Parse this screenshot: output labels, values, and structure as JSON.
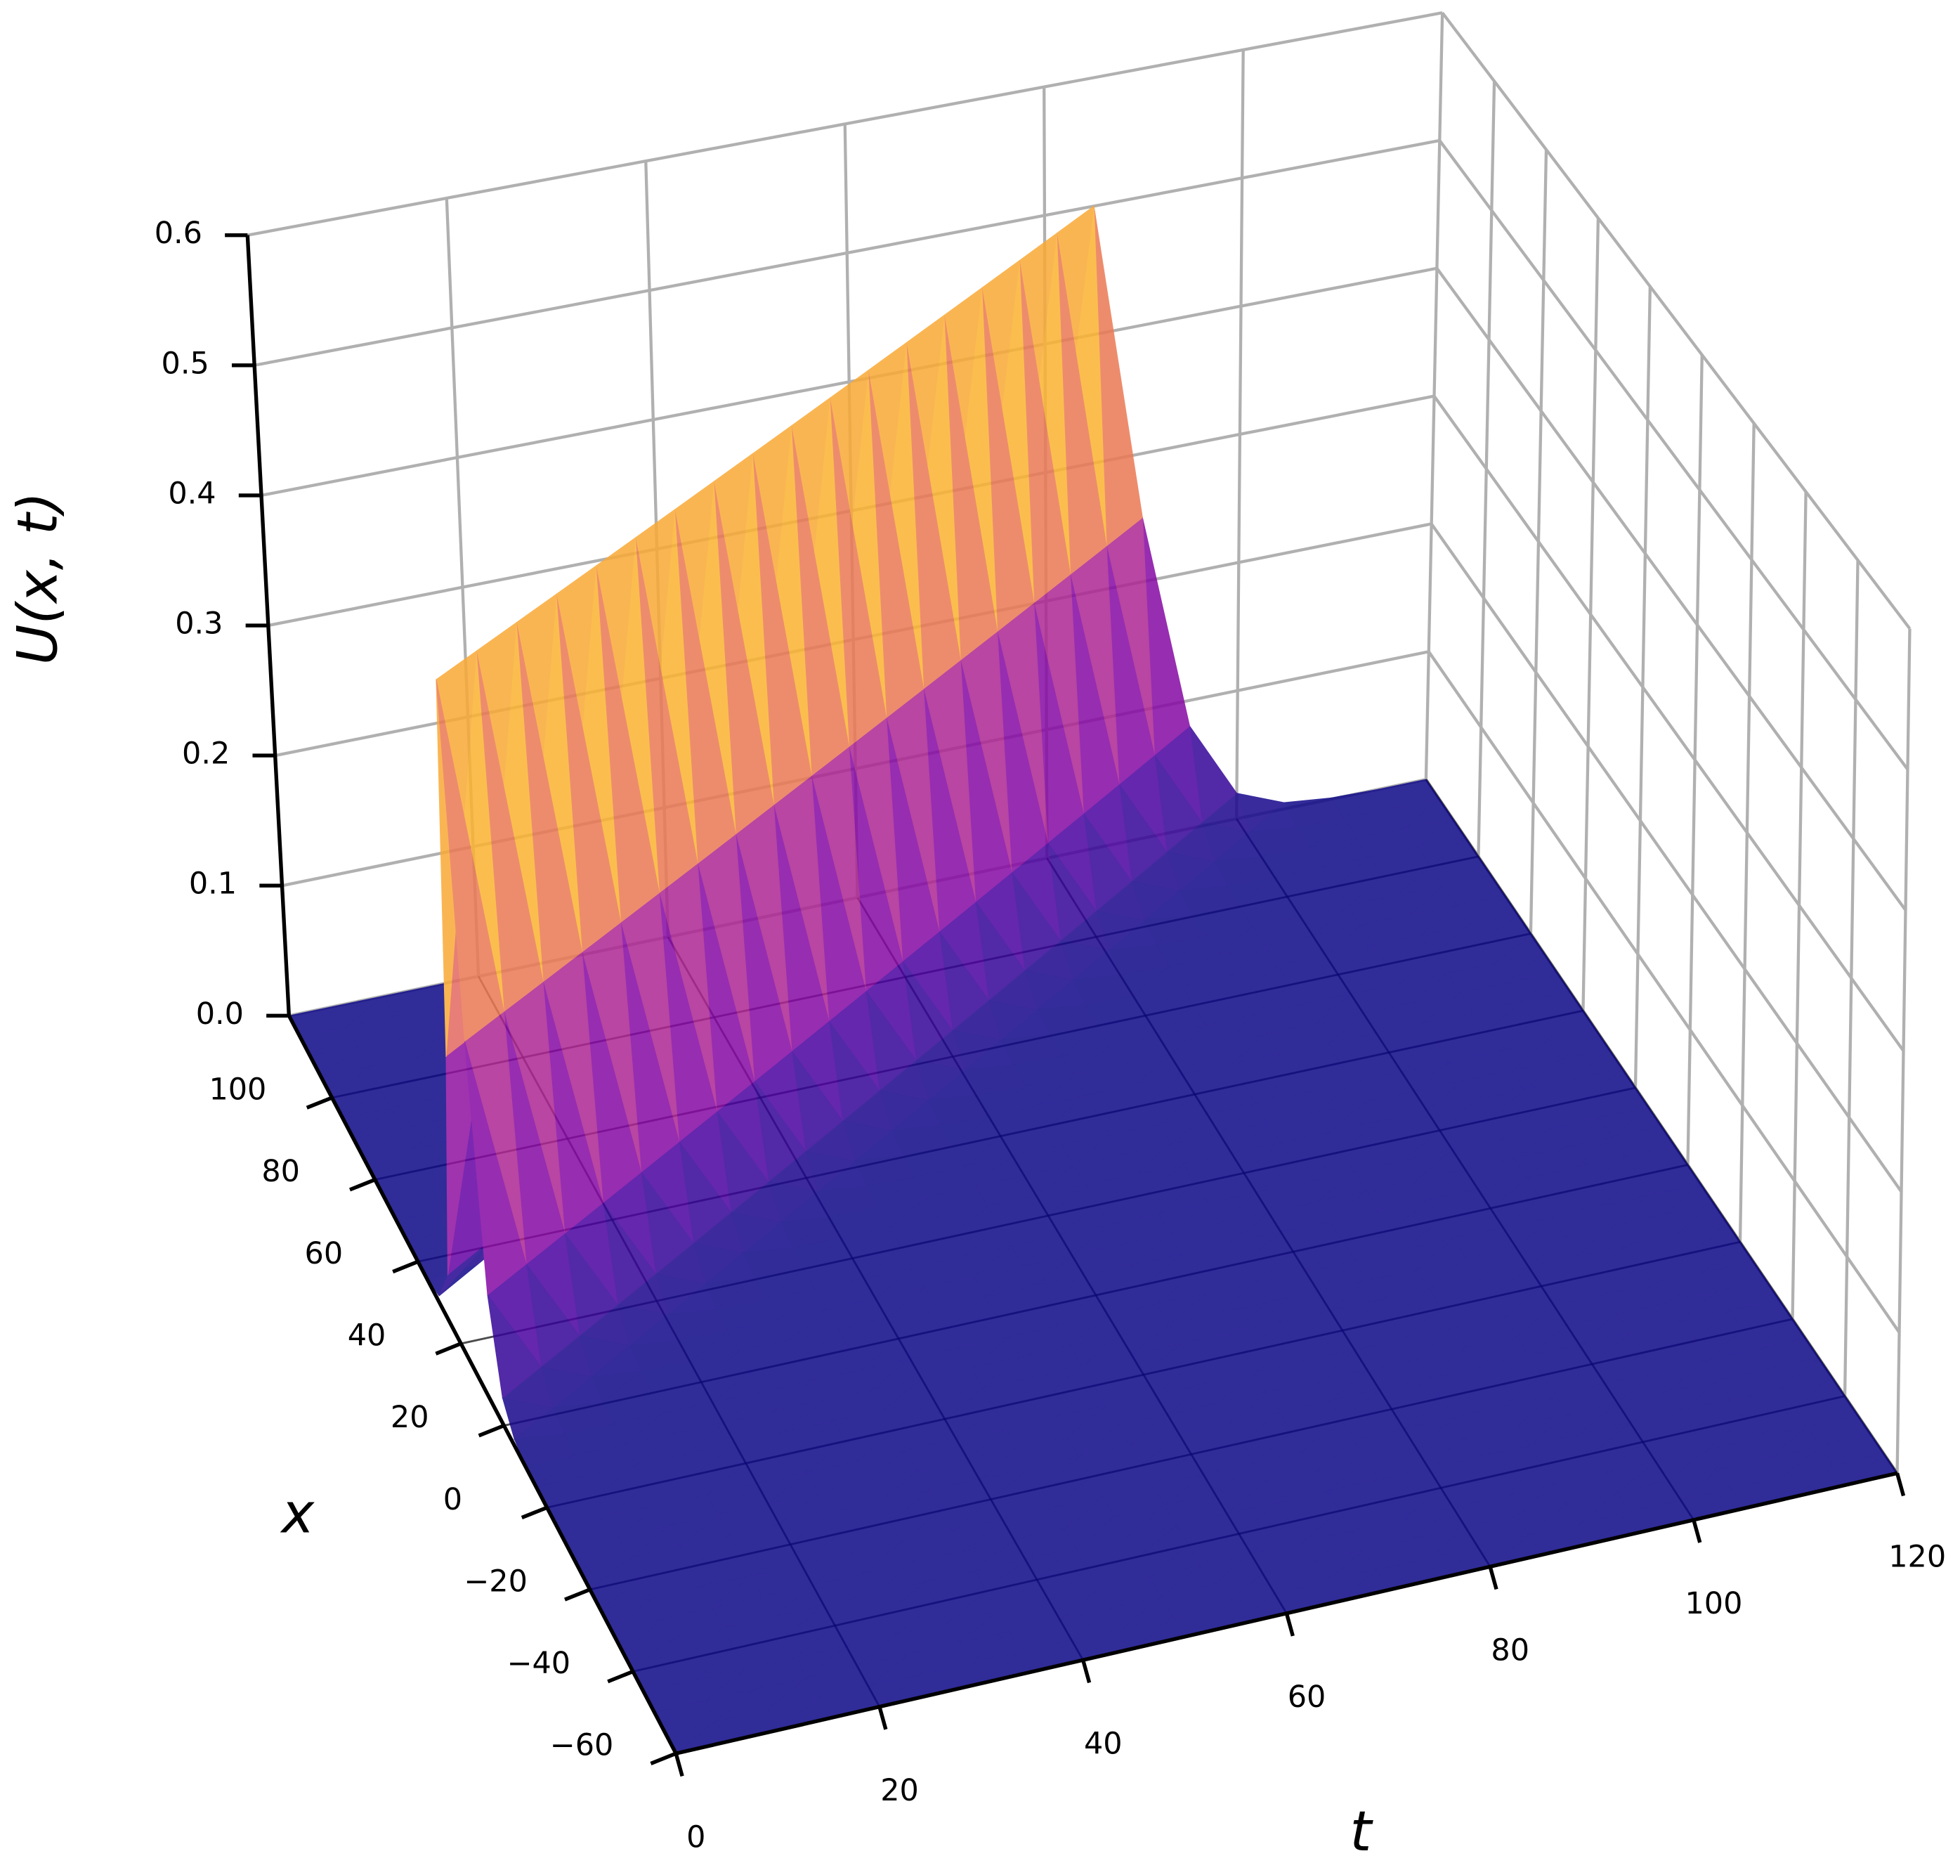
{
  "chart_data": {
    "type": "surface",
    "colormap": "plasma",
    "x_label": "x",
    "t_label": "t",
    "z_label": "U(x, t)",
    "grid": true,
    "xlim": [
      -60,
      120
    ],
    "tlim": [
      0,
      120
    ],
    "zlim": [
      0,
      0.6
    ],
    "xticks": [
      {
        "value": -60,
        "label": "−60"
      },
      {
        "value": -40,
        "label": "−40"
      },
      {
        "value": -20,
        "label": "−20"
      },
      0,
      20,
      40,
      60,
      80,
      100
    ],
    "tticks": [
      0,
      20,
      40,
      60,
      80,
      100,
      120
    ],
    "zticks": [
      {
        "value": 0,
        "label": "0.0"
      },
      0.1,
      0.2,
      0.3,
      0.4,
      0.5,
      0.6
    ],
    "t": [
      0,
      5,
      10,
      15,
      20,
      25,
      30,
      35,
      40,
      45,
      50,
      55,
      60,
      65,
      70,
      75,
      80,
      85,
      90,
      95,
      100,
      105,
      110,
      115,
      120
    ],
    "x": [
      -60,
      -55,
      -50,
      -45,
      -40,
      -35,
      -30,
      -25,
      -20,
      -15,
      -10,
      -5,
      0,
      5,
      10,
      15,
      20,
      25,
      30,
      35,
      40,
      45,
      50,
      55,
      60,
      65,
      70,
      75,
      80,
      85,
      90,
      95,
      100,
      105,
      110,
      115,
      120
    ],
    "z": [
      [
        0,
        0,
        0,
        0,
        0,
        0,
        0,
        0,
        0,
        0,
        0,
        0,
        0,
        0,
        0.001,
        0.005,
        0.02,
        0.08,
        0.25,
        0.5,
        0.21,
        0.035,
        0.005,
        0.001,
        0,
        0,
        0,
        0,
        0,
        0,
        0,
        0,
        0,
        0,
        0,
        0,
        0
      ],
      [
        0,
        0,
        0,
        0,
        0,
        0,
        0,
        0,
        0,
        0,
        0,
        0,
        0,
        0,
        0,
        0.001,
        0.005,
        0.02,
        0.08,
        0.25,
        0.5,
        0.21,
        0.035,
        0.005,
        0.001,
        0,
        0,
        0,
        0,
        0,
        0,
        0,
        0,
        0,
        0,
        0,
        0
      ],
      [
        0,
        0,
        0,
        0,
        0,
        0,
        0,
        0,
        0,
        0,
        0,
        0,
        0,
        0,
        0,
        0,
        0.001,
        0.005,
        0.02,
        0.08,
        0.25,
        0.5,
        0.21,
        0.035,
        0.005,
        0.001,
        0,
        0,
        0,
        0,
        0,
        0,
        0,
        0,
        0,
        0,
        0
      ],
      [
        0,
        0,
        0,
        0,
        0,
        0,
        0,
        0,
        0,
        0,
        0,
        0,
        0,
        0,
        0,
        0,
        0,
        0.001,
        0.005,
        0.02,
        0.08,
        0.25,
        0.5,
        0.21,
        0.035,
        0.005,
        0.001,
        0,
        0,
        0,
        0,
        0,
        0,
        0,
        0,
        0,
        0
      ],
      [
        0,
        0,
        0,
        0,
        0,
        0,
        0,
        0,
        0,
        0,
        0,
        0,
        0,
        0,
        0,
        0,
        0,
        0,
        0.001,
        0.005,
        0.02,
        0.08,
        0.25,
        0.5,
        0.21,
        0.035,
        0.005,
        0.001,
        0,
        0,
        0,
        0,
        0,
        0,
        0,
        0,
        0
      ],
      [
        0,
        0,
        0,
        0,
        0,
        0,
        0,
        0,
        0,
        0,
        0,
        0,
        0,
        0,
        0,
        0,
        0,
        0,
        0,
        0.001,
        0.005,
        0.02,
        0.08,
        0.25,
        0.5,
        0.21,
        0.035,
        0.005,
        0.001,
        0,
        0,
        0,
        0,
        0,
        0,
        0,
        0
      ],
      [
        0,
        0,
        0,
        0,
        0,
        0,
        0,
        0,
        0,
        0,
        0,
        0,
        0,
        0,
        0,
        0,
        0,
        0,
        0,
        0,
        0.001,
        0.005,
        0.02,
        0.08,
        0.25,
        0.5,
        0.21,
        0.035,
        0.005,
        0.001,
        0,
        0,
        0,
        0,
        0,
        0,
        0
      ],
      [
        0,
        0,
        0,
        0,
        0,
        0,
        0,
        0,
        0,
        0,
        0,
        0,
        0,
        0,
        0,
        0,
        0,
        0,
        0,
        0,
        0,
        0.001,
        0.005,
        0.02,
        0.08,
        0.25,
        0.5,
        0.21,
        0.035,
        0.005,
        0.001,
        0,
        0,
        0,
        0,
        0,
        0
      ],
      [
        0,
        0,
        0,
        0,
        0,
        0,
        0,
        0,
        0,
        0,
        0,
        0,
        0,
        0,
        0,
        0,
        0,
        0,
        0,
        0,
        0,
        0,
        0.001,
        0.005,
        0.02,
        0.08,
        0.25,
        0.5,
        0.21,
        0.035,
        0.005,
        0.001,
        0,
        0,
        0,
        0,
        0
      ],
      [
        0,
        0,
        0,
        0,
        0,
        0,
        0,
        0,
        0,
        0,
        0,
        0,
        0,
        0,
        0,
        0,
        0,
        0,
        0,
        0,
        0,
        0,
        0,
        0.001,
        0.005,
        0.02,
        0.08,
        0.25,
        0.5,
        0.21,
        0.035,
        0.005,
        0.001,
        0,
        0,
        0,
        0
      ],
      [
        0,
        0,
        0,
        0,
        0,
        0,
        0,
        0,
        0,
        0,
        0,
        0,
        0,
        0,
        0,
        0,
        0,
        0,
        0,
        0,
        0,
        0,
        0,
        0,
        0.001,
        0.005,
        0.02,
        0.08,
        0.25,
        0.5,
        0.21,
        0.035,
        0.005,
        0.001,
        0,
        0,
        0
      ],
      [
        0,
        0,
        0,
        0,
        0,
        0,
        0,
        0,
        0,
        0,
        0,
        0,
        0,
        0,
        0,
        0,
        0,
        0,
        0,
        0,
        0,
        0,
        0,
        0,
        0,
        0.001,
        0.005,
        0.02,
        0.08,
        0.25,
        0.5,
        0.21,
        0.035,
        0.005,
        0.001,
        0,
        0
      ],
      [
        0,
        0,
        0,
        0,
        0,
        0,
        0,
        0,
        0,
        0,
        0,
        0,
        0,
        0,
        0,
        0,
        0,
        0,
        0,
        0,
        0,
        0,
        0,
        0,
        0,
        0,
        0.001,
        0.005,
        0.02,
        0.08,
        0.25,
        0.5,
        0.21,
        0.035,
        0.005,
        0.001,
        0
      ],
      [
        0,
        0,
        0,
        0,
        0,
        0,
        0,
        0,
        0,
        0,
        0,
        0,
        0,
        0,
        0,
        0,
        0,
        0,
        0,
        0,
        0,
        0,
        0,
        0,
        0,
        0,
        0,
        0.001,
        0.005,
        0.02,
        0.08,
        0.25,
        0.5,
        0.21,
        0.035,
        0.005,
        0.001
      ],
      [
        0,
        0,
        0,
        0,
        0,
        0,
        0,
        0,
        0,
        0,
        0,
        0,
        0,
        0,
        0,
        0,
        0,
        0,
        0,
        0,
        0,
        0,
        0,
        0,
        0,
        0,
        0,
        0,
        0.001,
        0.005,
        0.02,
        0.08,
        0.25,
        0.5,
        0.21,
        0.035,
        0.005
      ],
      [
        0,
        0,
        0,
        0,
        0,
        0,
        0,
        0,
        0,
        0,
        0,
        0,
        0,
        0,
        0,
        0,
        0,
        0,
        0,
        0,
        0,
        0,
        0,
        0,
        0,
        0,
        0,
        0,
        0,
        0.001,
        0.005,
        0.02,
        0.08,
        0.25,
        0.5,
        0.21,
        0.035
      ],
      [
        0,
        0,
        0,
        0,
        0,
        0,
        0,
        0,
        0,
        0,
        0,
        0,
        0,
        0,
        0,
        0,
        0,
        0,
        0,
        0,
        0,
        0,
        0,
        0,
        0,
        0,
        0,
        0,
        0,
        0,
        0.001,
        0.005,
        0.02,
        0.08,
        0.25,
        0.5,
        0.21
      ],
      [
        0,
        0,
        0,
        0,
        0,
        0,
        0,
        0,
        0,
        0,
        0,
        0,
        0,
        0,
        0,
        0,
        0,
        0,
        0,
        0,
        0,
        0,
        0,
        0,
        0,
        0,
        0,
        0,
        0,
        0,
        0,
        0.001,
        0.005,
        0.02,
        0.08,
        0.25,
        0.5
      ],
      [
        0,
        0,
        0,
        0,
        0,
        0,
        0,
        0,
        0,
        0,
        0,
        0,
        0,
        0,
        0,
        0,
        0,
        0,
        0,
        0,
        0,
        0,
        0,
        0,
        0,
        0,
        0,
        0,
        0,
        0,
        0,
        0,
        0.001,
        0.005,
        0.02,
        0.08,
        0.25
      ],
      [
        0,
        0,
        0,
        0,
        0,
        0,
        0,
        0,
        0,
        0,
        0,
        0,
        0,
        0,
        0,
        0,
        0,
        0,
        0,
        0,
        0,
        0,
        0,
        0,
        0,
        0,
        0,
        0,
        0,
        0,
        0,
        0,
        0,
        0.001,
        0.005,
        0.02,
        0.08
      ],
      [
        0,
        0,
        0,
        0,
        0,
        0,
        0,
        0,
        0,
        0,
        0,
        0,
        0,
        0,
        0,
        0,
        0,
        0,
        0,
        0,
        0,
        0,
        0,
        0,
        0,
        0,
        0,
        0,
        0,
        0,
        0,
        0,
        0,
        0,
        0.001,
        0.005,
        0.02
      ],
      [
        0,
        0,
        0,
        0,
        0,
        0,
        0,
        0,
        0,
        0,
        0,
        0,
        0,
        0,
        0,
        0,
        0,
        0,
        0,
        0,
        0,
        0,
        0,
        0,
        0,
        0,
        0,
        0,
        0,
        0,
        0,
        0,
        0,
        0,
        0,
        0.001,
        0.005
      ],
      [
        0,
        0,
        0,
        0,
        0,
        0,
        0,
        0,
        0,
        0,
        0,
        0,
        0,
        0,
        0,
        0,
        0,
        0,
        0,
        0,
        0,
        0,
        0,
        0,
        0,
        0,
        0,
        0,
        0,
        0,
        0,
        0,
        0,
        0,
        0,
        0,
        0.001
      ],
      [
        0,
        0,
        0,
        0,
        0,
        0,
        0,
        0,
        0,
        0,
        0,
        0,
        0,
        0,
        0,
        0,
        0,
        0,
        0,
        0,
        0,
        0,
        0,
        0,
        0,
        0,
        0,
        0,
        0,
        0,
        0,
        0,
        0,
        0,
        0,
        0,
        0
      ],
      [
        0,
        0,
        0,
        0,
        0,
        0,
        0,
        0,
        0,
        0,
        0,
        0,
        0,
        0,
        0,
        0,
        0,
        0,
        0,
        0,
        0,
        0,
        0,
        0,
        0,
        0,
        0,
        0,
        0,
        0,
        0,
        0,
        0,
        0,
        0,
        0,
        0
      ]
    ]
  }
}
